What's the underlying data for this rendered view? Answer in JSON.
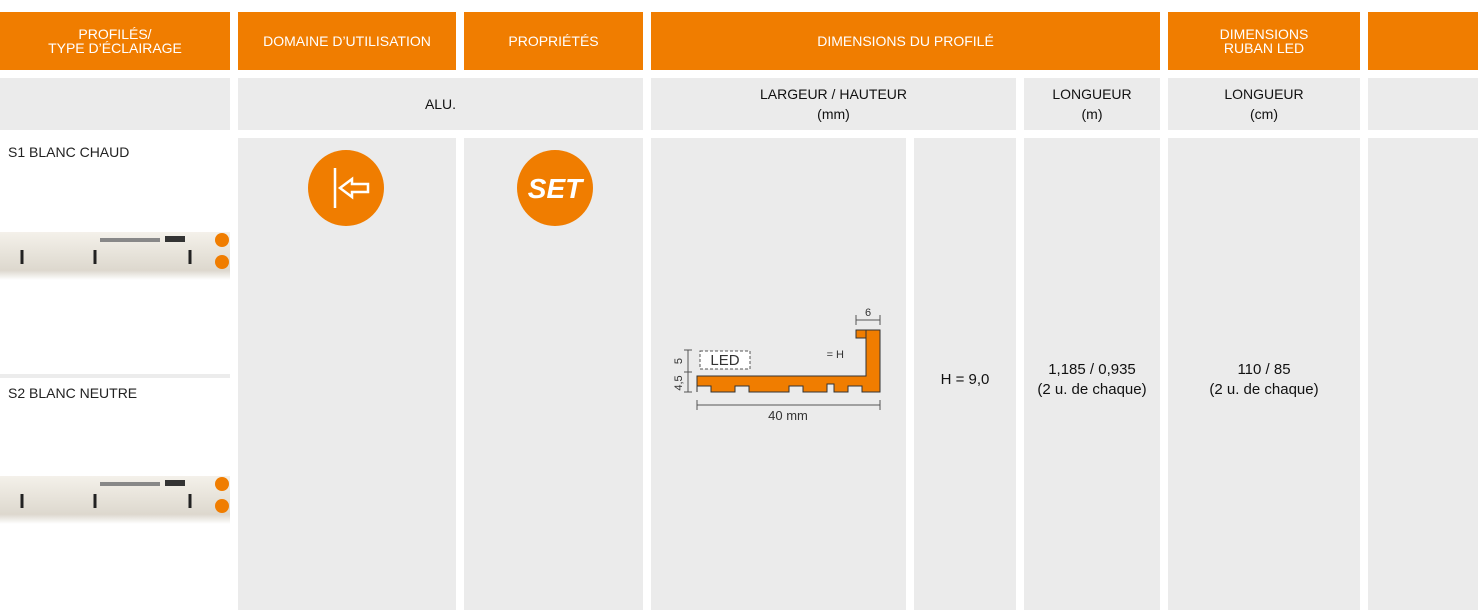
{
  "header": {
    "cells": [
      [
        "PROFILÉS/",
        "TYPE D’ÉCLAIRAGE"
      ],
      [
        "DOMAINE D’UTILISATION"
      ],
      [
        "PROPRIÉTÉS"
      ],
      [
        "DIMENSIONS DU PROFILÉ"
      ],
      [
        "DIMENSIONS",
        "RUBAN LED"
      ]
    ]
  },
  "subheader": {
    "material": "ALU.",
    "width_height": [
      "LARGEUR / HAUTEUR",
      "(mm)"
    ],
    "length_m": [
      "LONGUEUR",
      "(m)"
    ],
    "length_cm": [
      "LONGUEUR",
      "(cm)"
    ]
  },
  "rows": [
    {
      "label": "S1 BLANC CHAUD"
    },
    {
      "label": "S2 BLANC NEUTRE"
    }
  ],
  "properties_icon": "SET",
  "diagram": {
    "led": "LED",
    "top": "6",
    "height": "= H",
    "dim_a": "5",
    "dim_b": "4,5",
    "width": "40 mm"
  },
  "values": {
    "height": "H = 9,0",
    "length_m": [
      "1,185 / 0,935",
      "(2 u. de chaque)"
    ],
    "length_cm": [
      "110 / 85",
      "(2 u. de chaque)"
    ]
  }
}
